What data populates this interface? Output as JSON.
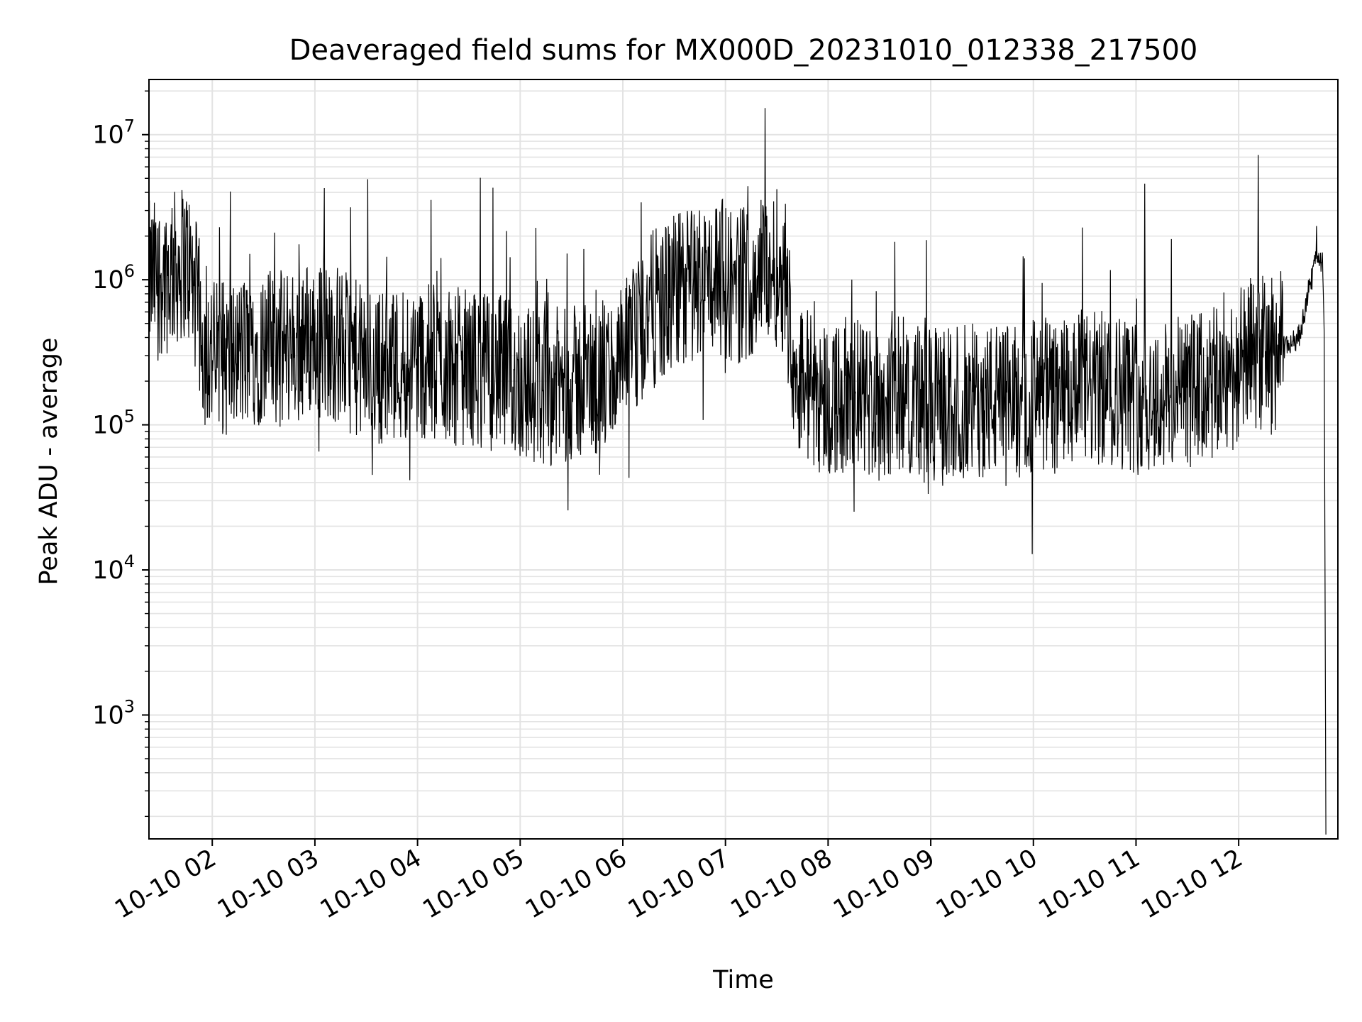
{
  "chart_data": {
    "type": "line",
    "title": "Deaveraged field sums for MX000D_20231010_012338_217500",
    "xlabel": "Time",
    "ylabel": "Peak ADU - average",
    "y_scale": "log",
    "grid": true,
    "grid_color": "#e3e3e3",
    "line_color": "#000000",
    "x_tick_labels": [
      "10-10 02",
      "10-10 03",
      "10-10 04",
      "10-10 05",
      "10-10 06",
      "10-10 07",
      "10-10 08",
      "10-10 09",
      "10-10 10",
      "10-10 11",
      "10-10 12"
    ],
    "x_ticks": [
      "2023-10-10 02:00",
      "2023-10-10 03:00",
      "2023-10-10 04:00",
      "2023-10-10 05:00",
      "2023-10-10 06:00",
      "2023-10-10 07:00",
      "2023-10-10 08:00",
      "2023-10-10 09:00",
      "2023-10-10 10:00",
      "2023-10-10 11:00",
      "2023-10-10 12:00"
    ],
    "xlim": [
      "2023-10-10 01:23",
      "2023-10-10 12:58"
    ],
    "ylim": [
      140,
      24000000
    ],
    "y_tick_values": [
      1000,
      10000,
      100000,
      1000000,
      10000000
    ],
    "y_tick_labels": [
      {
        "base": "10",
        "exp": "3"
      },
      {
        "base": "10",
        "exp": "4"
      },
      {
        "base": "10",
        "exp": "5"
      },
      {
        "base": "10",
        "exp": "6"
      },
      {
        "base": "10",
        "exp": "7"
      }
    ],
    "series": [
      {
        "x": [
          "2023-10-10 01:23",
          "2023-10-10 01:35",
          "2023-10-10 01:45",
          "2023-10-10 01:51",
          "2023-10-10 01:55",
          "2023-10-10 02:00",
          "2023-10-10 02:10",
          "2023-10-10 02:20",
          "2023-10-10 02:30",
          "2023-10-10 02:40",
          "2023-10-10 02:50",
          "2023-10-10 03:00",
          "2023-10-10 03:15",
          "2023-10-10 03:30",
          "2023-10-10 03:45",
          "2023-10-10 04:00",
          "2023-10-10 04:15",
          "2023-10-10 04:30",
          "2023-10-10 04:45",
          "2023-10-10 05:00",
          "2023-10-10 05:15",
          "2023-10-10 05:30",
          "2023-10-10 05:45",
          "2023-10-10 05:55",
          "2023-10-10 06:05",
          "2023-10-10 06:15",
          "2023-10-10 06:25",
          "2023-10-10 06:35",
          "2023-10-10 06:45",
          "2023-10-10 06:55",
          "2023-10-10 07:05",
          "2023-10-10 07:15",
          "2023-10-10 07:25",
          "2023-10-10 07:35",
          "2023-10-10 07:40",
          "2023-10-10 07:50",
          "2023-10-10 08:00",
          "2023-10-10 08:15",
          "2023-10-10 08:30",
          "2023-10-10 08:45",
          "2023-10-10 09:00",
          "2023-10-10 09:15",
          "2023-10-10 09:30",
          "2023-10-10 09:45",
          "2023-10-10 10:00",
          "2023-10-10 10:15",
          "2023-10-10 10:30",
          "2023-10-10 10:45",
          "2023-10-10 11:00",
          "2023-10-10 11:15",
          "2023-10-10 11:30",
          "2023-10-10 11:45",
          "2023-10-10 12:00",
          "2023-10-10 12:10",
          "2023-10-10 12:20",
          "2023-10-10 12:28",
          "2023-10-10 12:35",
          "2023-10-10 12:40",
          "2023-10-10 12:43",
          "2023-10-10 12:46",
          "2023-10-10 12:49",
          "2023-10-10 12:50",
          "2023-10-10 12:51"
        ],
        "y": [
          1000000,
          1100000,
          1400000,
          700000,
          350000,
          300000,
          280000,
          320000,
          350000,
          330000,
          380000,
          400000,
          350000,
          250000,
          260000,
          280000,
          260000,
          250000,
          230000,
          200000,
          180000,
          190000,
          200000,
          230000,
          320000,
          600000,
          700000,
          900000,
          1000000,
          1100000,
          900000,
          1000000,
          1300000,
          1100000,
          250000,
          180000,
          150000,
          160000,
          140000,
          170000,
          130000,
          140000,
          150000,
          140000,
          160000,
          150000,
          170000,
          180000,
          160000,
          150000,
          170000,
          180000,
          250000,
          320000,
          300000,
          350000,
          400000,
          700000,
          1100000,
          1500000,
          1300000,
          400000,
          150
        ]
      }
    ]
  }
}
